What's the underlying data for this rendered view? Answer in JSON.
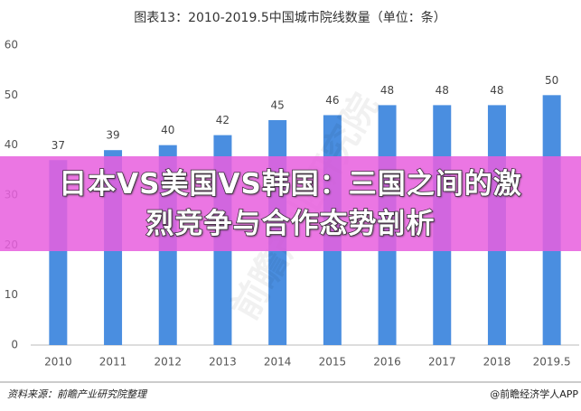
{
  "chart_data": {
    "type": "bar",
    "title": "图表13：2010-2019.5中国城市院线数量（单位：条）",
    "categories": [
      "2010",
      "2011",
      "2012",
      "2013",
      "2014",
      "2015",
      "2016",
      "2017",
      "2018",
      "2019.5"
    ],
    "values": [
      37,
      39,
      40,
      42,
      45,
      46,
      48,
      48,
      48,
      50
    ],
    "color": "#4a8ee0",
    "ylim": [
      0,
      60
    ],
    "yticks": [
      0,
      10,
      20,
      30,
      40,
      50,
      60
    ],
    "grid": false,
    "source": "资料来源：前瞻产业研究院整理",
    "credit": "@前瞻经济学人APP",
    "watermark": "前瞻产业研究院"
  },
  "banner": {
    "lines": [
      "日本VS美国VS韩国：三国之间的激",
      "烈竞争与合作态势剖析"
    ]
  }
}
